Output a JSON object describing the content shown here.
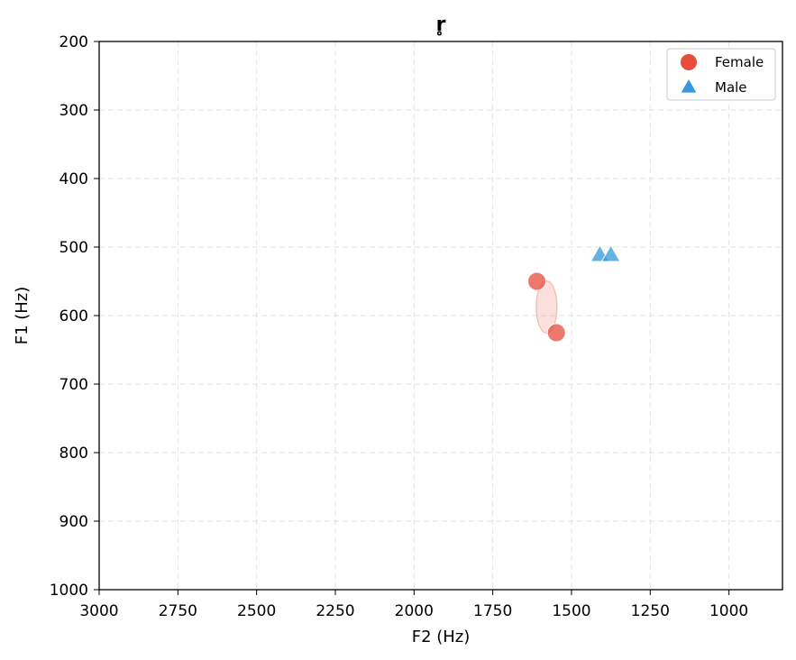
{
  "chart_data": {
    "type": "scatter",
    "title": "r̥",
    "xlabel": "F2 (Hz)",
    "ylabel": "F1 (Hz)",
    "xlim": [
      3000,
      830
    ],
    "ylim": [
      1000,
      200
    ],
    "x_axis_inverted": true,
    "y_axis_inverted": true,
    "xticks": [
      3000,
      2750,
      2500,
      2250,
      2000,
      1750,
      1500,
      1250,
      1000
    ],
    "yticks": [
      200,
      300,
      400,
      500,
      600,
      700,
      800,
      900,
      1000
    ],
    "grid": true,
    "legend_position": "top-right",
    "series": [
      {
        "name": "Female",
        "marker": "circle",
        "color": "#e74c3c",
        "points": [
          {
            "x": 1610,
            "y": 550
          },
          {
            "x": 1548,
            "y": 625
          }
        ],
        "ellipse": {
          "cx": 1579,
          "cy": 587.5,
          "rx": 33,
          "ry": 38
        }
      },
      {
        "name": "Male",
        "marker": "triangle",
        "color": "#3498db",
        "points": [
          {
            "x": 1410,
            "y": 512
          },
          {
            "x": 1375,
            "y": 512
          }
        ]
      }
    ]
  }
}
